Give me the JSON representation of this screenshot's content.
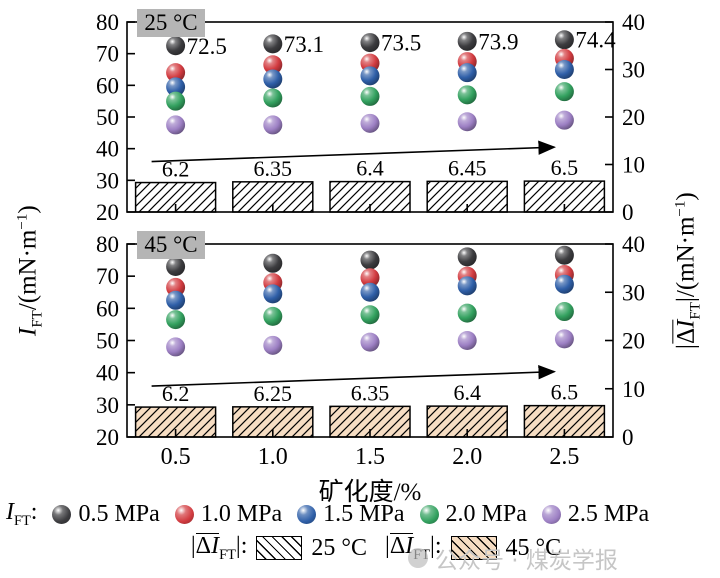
{
  "labels": {
    "xlabel": "矿化度/%",
    "left_axis": {
      "sym": "I",
      "sub": "FT",
      "unit_pre": "/(mN·m",
      "unit_sup": "−1",
      "unit_post": ")"
    },
    "right_axis": {
      "abs_open": "|",
      "delta_pre": "Δ",
      "delta_i": "I",
      "sub": "FT",
      "abs_close": "|",
      "unit_pre": "/(mN·m",
      "unit_sup": "−1",
      "unit_post": ")"
    }
  },
  "legend": {
    "row1_prefix": {
      "sym": "I",
      "sub": "FT",
      "colon": ":"
    },
    "row2": [
      {
        "abs_open": "|",
        "delta_pre": "Δ",
        "delta_i": "I",
        "sub": "FT",
        "abs_close": "|:",
        "temp": "25 °C",
        "swatch_fill": "#ffffff"
      },
      {
        "abs_open": "|",
        "delta_pre": "Δ",
        "delta_i": "I",
        "sub": "FT",
        "abs_close": "|:",
        "temp": "45 °C",
        "swatch_fill": "#f6ddc3"
      }
    ]
  },
  "watermark": "公众号 · 煤炭学报",
  "chart_data": {
    "type": "scatter+bar",
    "x_categories": [
      "0.5",
      "1.0",
      "1.5",
      "2.0",
      "2.5"
    ],
    "xlabel": "矿化度/%",
    "left_axis": {
      "label": "IFT/(mN·m−1)",
      "range": [
        20,
        80
      ],
      "ticks": [
        20,
        30,
        40,
        50,
        60,
        70,
        80
      ]
    },
    "right_axis": {
      "label": "|ΔIFT|/(mN·m−1)",
      "range": [
        0,
        40
      ],
      "ticks": [
        0,
        10,
        20,
        30,
        40
      ]
    },
    "panels": [
      {
        "label": "25 °C",
        "scatter_series": [
          {
            "name": "0.5 MPa",
            "color": "#3d3d40",
            "values": [
              72.5,
              73.1,
              73.5,
              73.9,
              74.4
            ],
            "point_labels": [
              "72.5",
              "73.1",
              "73.5",
              "73.9",
              "74.4"
            ]
          },
          {
            "name": "1.0 MPa",
            "color": "#d23b40",
            "values": [
              64.0,
              66.5,
              67.0,
              67.5,
              68.5
            ]
          },
          {
            "name": "1.5 MPa",
            "color": "#2f5fa8",
            "values": [
              59.5,
              62.0,
              63.0,
              64.0,
              65.0
            ]
          },
          {
            "name": "2.0 MPa",
            "color": "#33a15f",
            "values": [
              55.0,
              56.0,
              56.5,
              57.0,
              58.0
            ]
          },
          {
            "name": "2.5 MPa",
            "color": "#9d80c4",
            "values": [
              47.5,
              47.5,
              48.0,
              48.5,
              49.0
            ]
          }
        ],
        "bars": {
          "values": [
            6.2,
            6.35,
            6.4,
            6.45,
            6.5
          ],
          "fill": "#ffffff"
        },
        "trend_arrow": true
      },
      {
        "label": "45 °C",
        "scatter_series": [
          {
            "name": "0.5 MPa",
            "color": "#3d3d40",
            "values": [
              73.0,
              74.0,
              75.0,
              76.0,
              76.5
            ]
          },
          {
            "name": "1.0 MPa",
            "color": "#d23b40",
            "values": [
              66.5,
              68.0,
              69.5,
              70.0,
              70.5
            ]
          },
          {
            "name": "1.5 MPa",
            "color": "#2f5fa8",
            "values": [
              62.5,
              64.5,
              65.0,
              67.0,
              67.5
            ]
          },
          {
            "name": "2.0 MPa",
            "color": "#33a15f",
            "values": [
              56.5,
              57.5,
              58.0,
              58.5,
              59.0
            ]
          },
          {
            "name": "2.5 MPa",
            "color": "#9d80c4",
            "values": [
              48.0,
              48.5,
              49.5,
              50.0,
              50.5
            ]
          }
        ],
        "bars": {
          "values": [
            6.2,
            6.25,
            6.35,
            6.4,
            6.5
          ],
          "fill": "#f6ddc3"
        },
        "trend_arrow": true
      }
    ]
  }
}
